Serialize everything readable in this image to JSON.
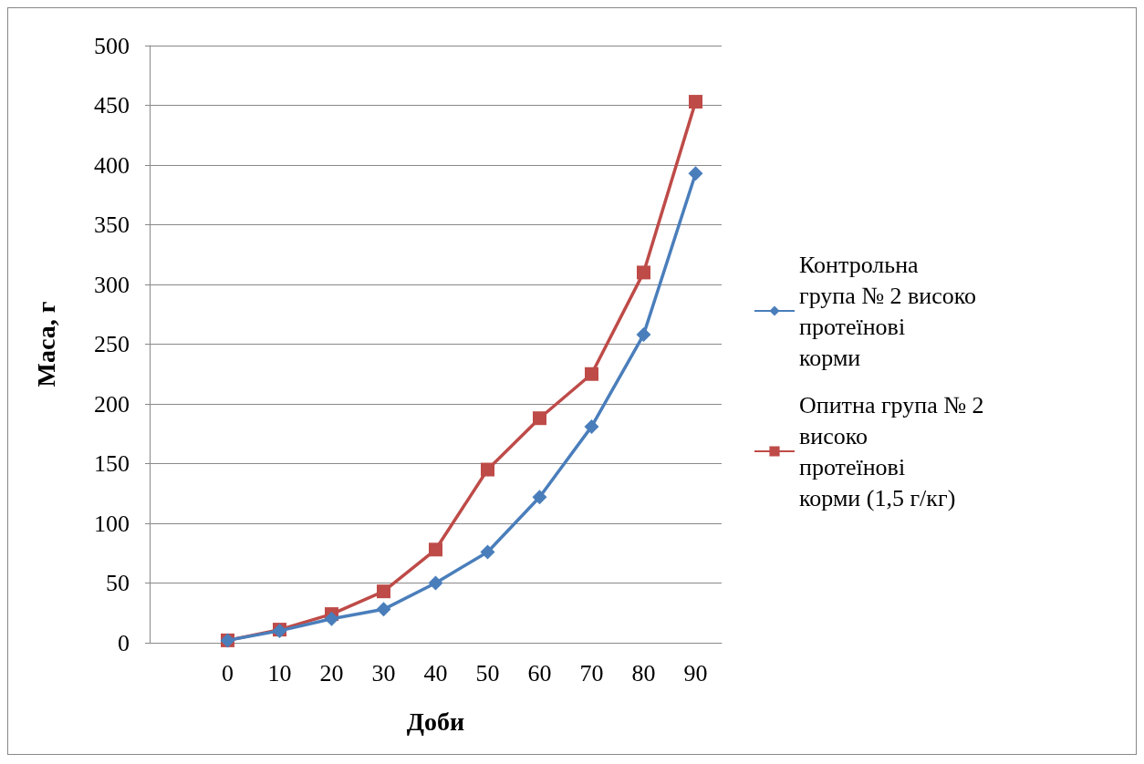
{
  "chart_data": {
    "type": "line",
    "xlabel": "Доби",
    "ylabel": "Маса, г",
    "categories": [
      null,
      "0",
      "10",
      "20",
      "30",
      "40",
      "50",
      "60",
      "70",
      "80",
      "90"
    ],
    "series": [
      {
        "name": "Контрольна група № 2 високо протеїнові корми",
        "color": "#4a7ebb",
        "marker": "diamond",
        "values": [
          null,
          2,
          10,
          20,
          28,
          50,
          76,
          122,
          181,
          258,
          393
        ]
      },
      {
        "name": "Опитна група № 2 високо протеїнові корми (1,5 г/кг)",
        "color": "#be4b48",
        "marker": "square",
        "values": [
          null,
          2,
          11,
          24,
          43,
          78,
          145,
          188,
          225,
          310,
          453
        ]
      }
    ],
    "ylim": [
      0,
      500
    ],
    "yticks": [
      0,
      50,
      100,
      150,
      200,
      250,
      300,
      350,
      400,
      450,
      500
    ],
    "grid": "y",
    "legend": "right"
  }
}
